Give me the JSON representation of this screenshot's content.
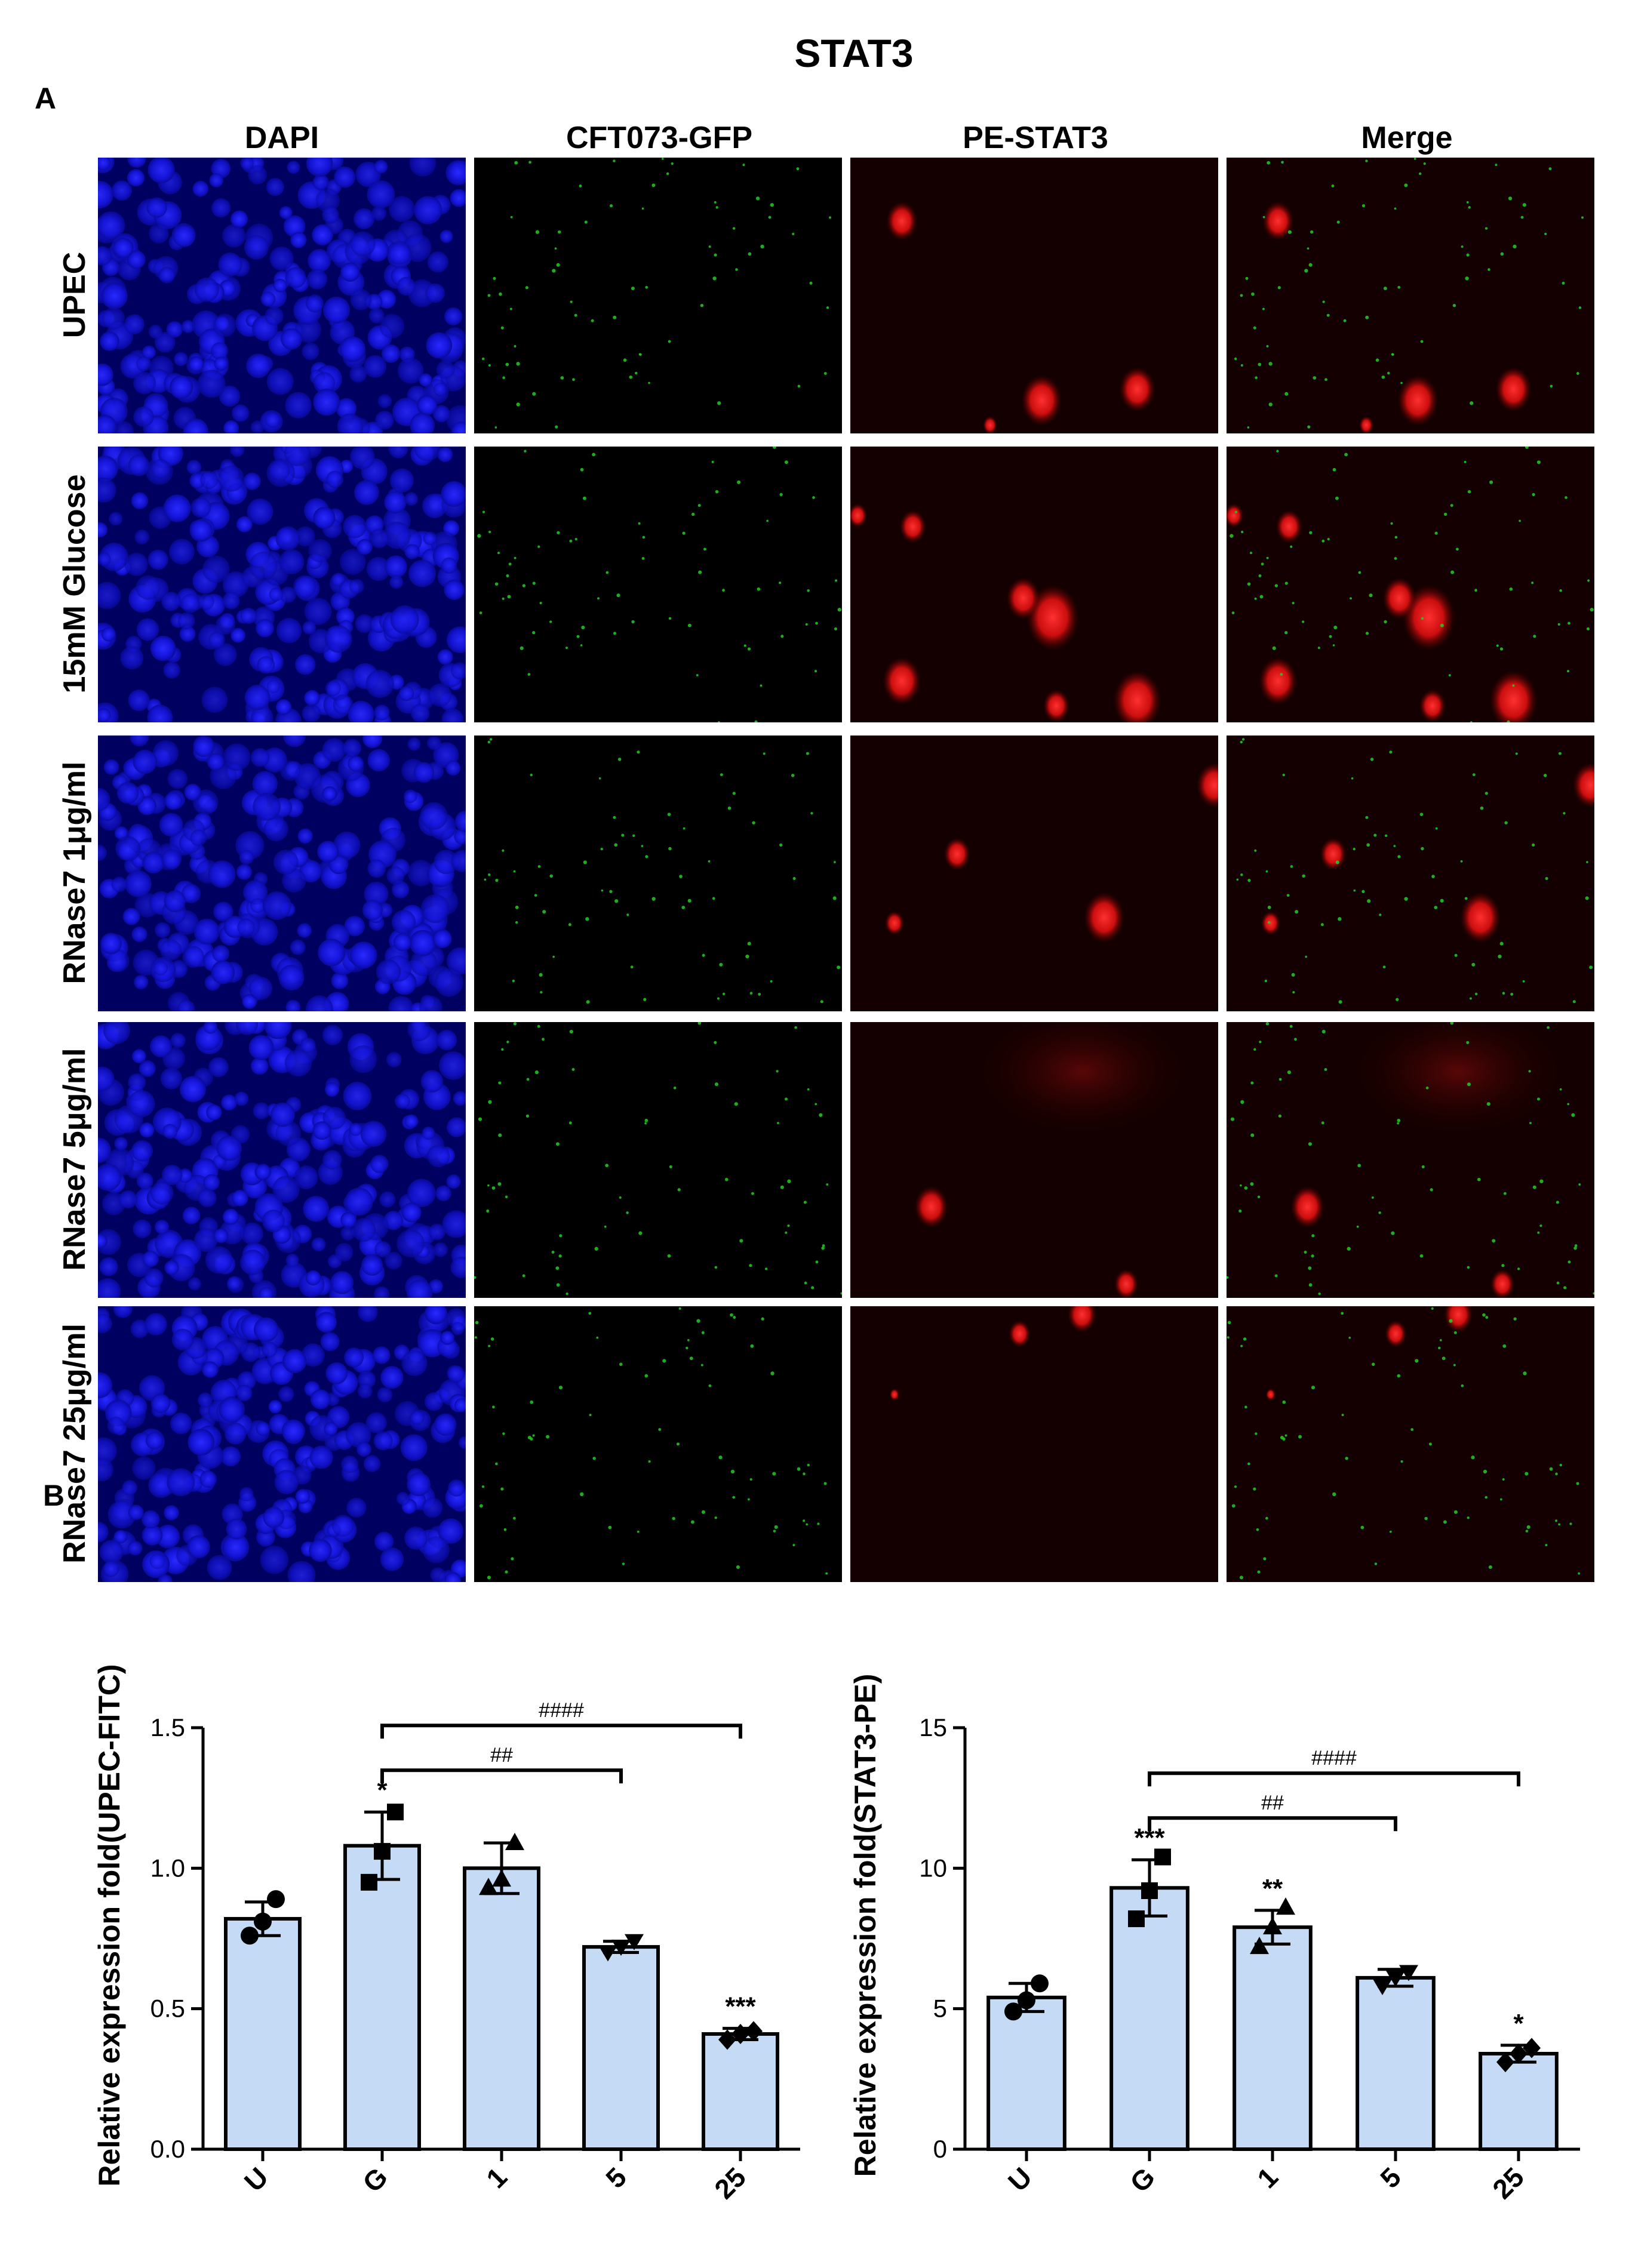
{
  "figure": {
    "title": "STAT3",
    "panel_a_label": "A",
    "panel_b_label": "B",
    "columns": [
      "DAPI",
      "CFT073-GFP",
      "PE-STAT3",
      "Merge"
    ],
    "rows": [
      "UPEC",
      "15mM Glucose",
      "RNase7 1μg/ml",
      "RNase7  5μg/ml",
      "RNase7 25μg/ml"
    ],
    "colors": {
      "dapi": "#1010d8",
      "gfp": "#22cc22",
      "pe": "#e01010",
      "bar_fill": "#c5dbf5",
      "background": "#000000"
    }
  },
  "chart_data": [
    {
      "type": "bar",
      "categories": [
        "U",
        "G",
        "1",
        "5",
        "25"
      ],
      "values": [
        0.82,
        1.08,
        1.0,
        0.72,
        0.41
      ],
      "errors": [
        0.06,
        0.12,
        0.09,
        0.02,
        0.02
      ],
      "points": [
        [
          0.76,
          0.81,
          0.89
        ],
        [
          0.95,
          1.06,
          1.2
        ],
        [
          0.93,
          0.96,
          1.09
        ],
        [
          0.7,
          0.72,
          0.74
        ],
        [
          0.39,
          0.41,
          0.42
        ]
      ],
      "point_markers": [
        "circle",
        "square",
        "triangle",
        "triangle-down",
        "diamond"
      ],
      "significance": [
        "",
        "*",
        "",
        "",
        "***"
      ],
      "brackets": [
        {
          "from": 1,
          "to": 3,
          "label": "##"
        },
        {
          "from": 1,
          "to": 4,
          "label": "####"
        }
      ],
      "ylabel": "Relative expression fold(UPEC-FITC)",
      "xlabel": "",
      "ylim": [
        0,
        1.5
      ],
      "yticks": [
        0.0,
        0.5,
        1.0,
        1.5
      ],
      "ytick_labels": [
        "0.0",
        "0.5",
        "1.0",
        "1.5"
      ],
      "grid": false
    },
    {
      "type": "bar",
      "categories": [
        "U",
        "G",
        "1",
        "5",
        "25"
      ],
      "values": [
        5.4,
        9.3,
        7.9,
        6.1,
        3.4
      ],
      "errors": [
        0.5,
        1.0,
        0.6,
        0.3,
        0.3
      ],
      "points": [
        [
          4.9,
          5.3,
          5.9
        ],
        [
          8.2,
          9.2,
          10.4
        ],
        [
          7.2,
          7.9,
          8.6
        ],
        [
          5.8,
          6.1,
          6.3
        ],
        [
          3.1,
          3.4,
          3.6
        ]
      ],
      "point_markers": [
        "circle",
        "square",
        "triangle",
        "triangle-down",
        "diamond"
      ],
      "significance": [
        "",
        "***",
        "**",
        "",
        "*"
      ],
      "brackets": [
        {
          "from": 1,
          "to": 3,
          "label": "##"
        },
        {
          "from": 1,
          "to": 4,
          "label": "####"
        }
      ],
      "ylabel": "Relative expression fold(STAT3-PE)",
      "xlabel": "",
      "ylim": [
        0,
        15
      ],
      "yticks": [
        0,
        5,
        10,
        15
      ],
      "ytick_labels": [
        "0",
        "5",
        "10",
        "15"
      ],
      "grid": false
    }
  ]
}
